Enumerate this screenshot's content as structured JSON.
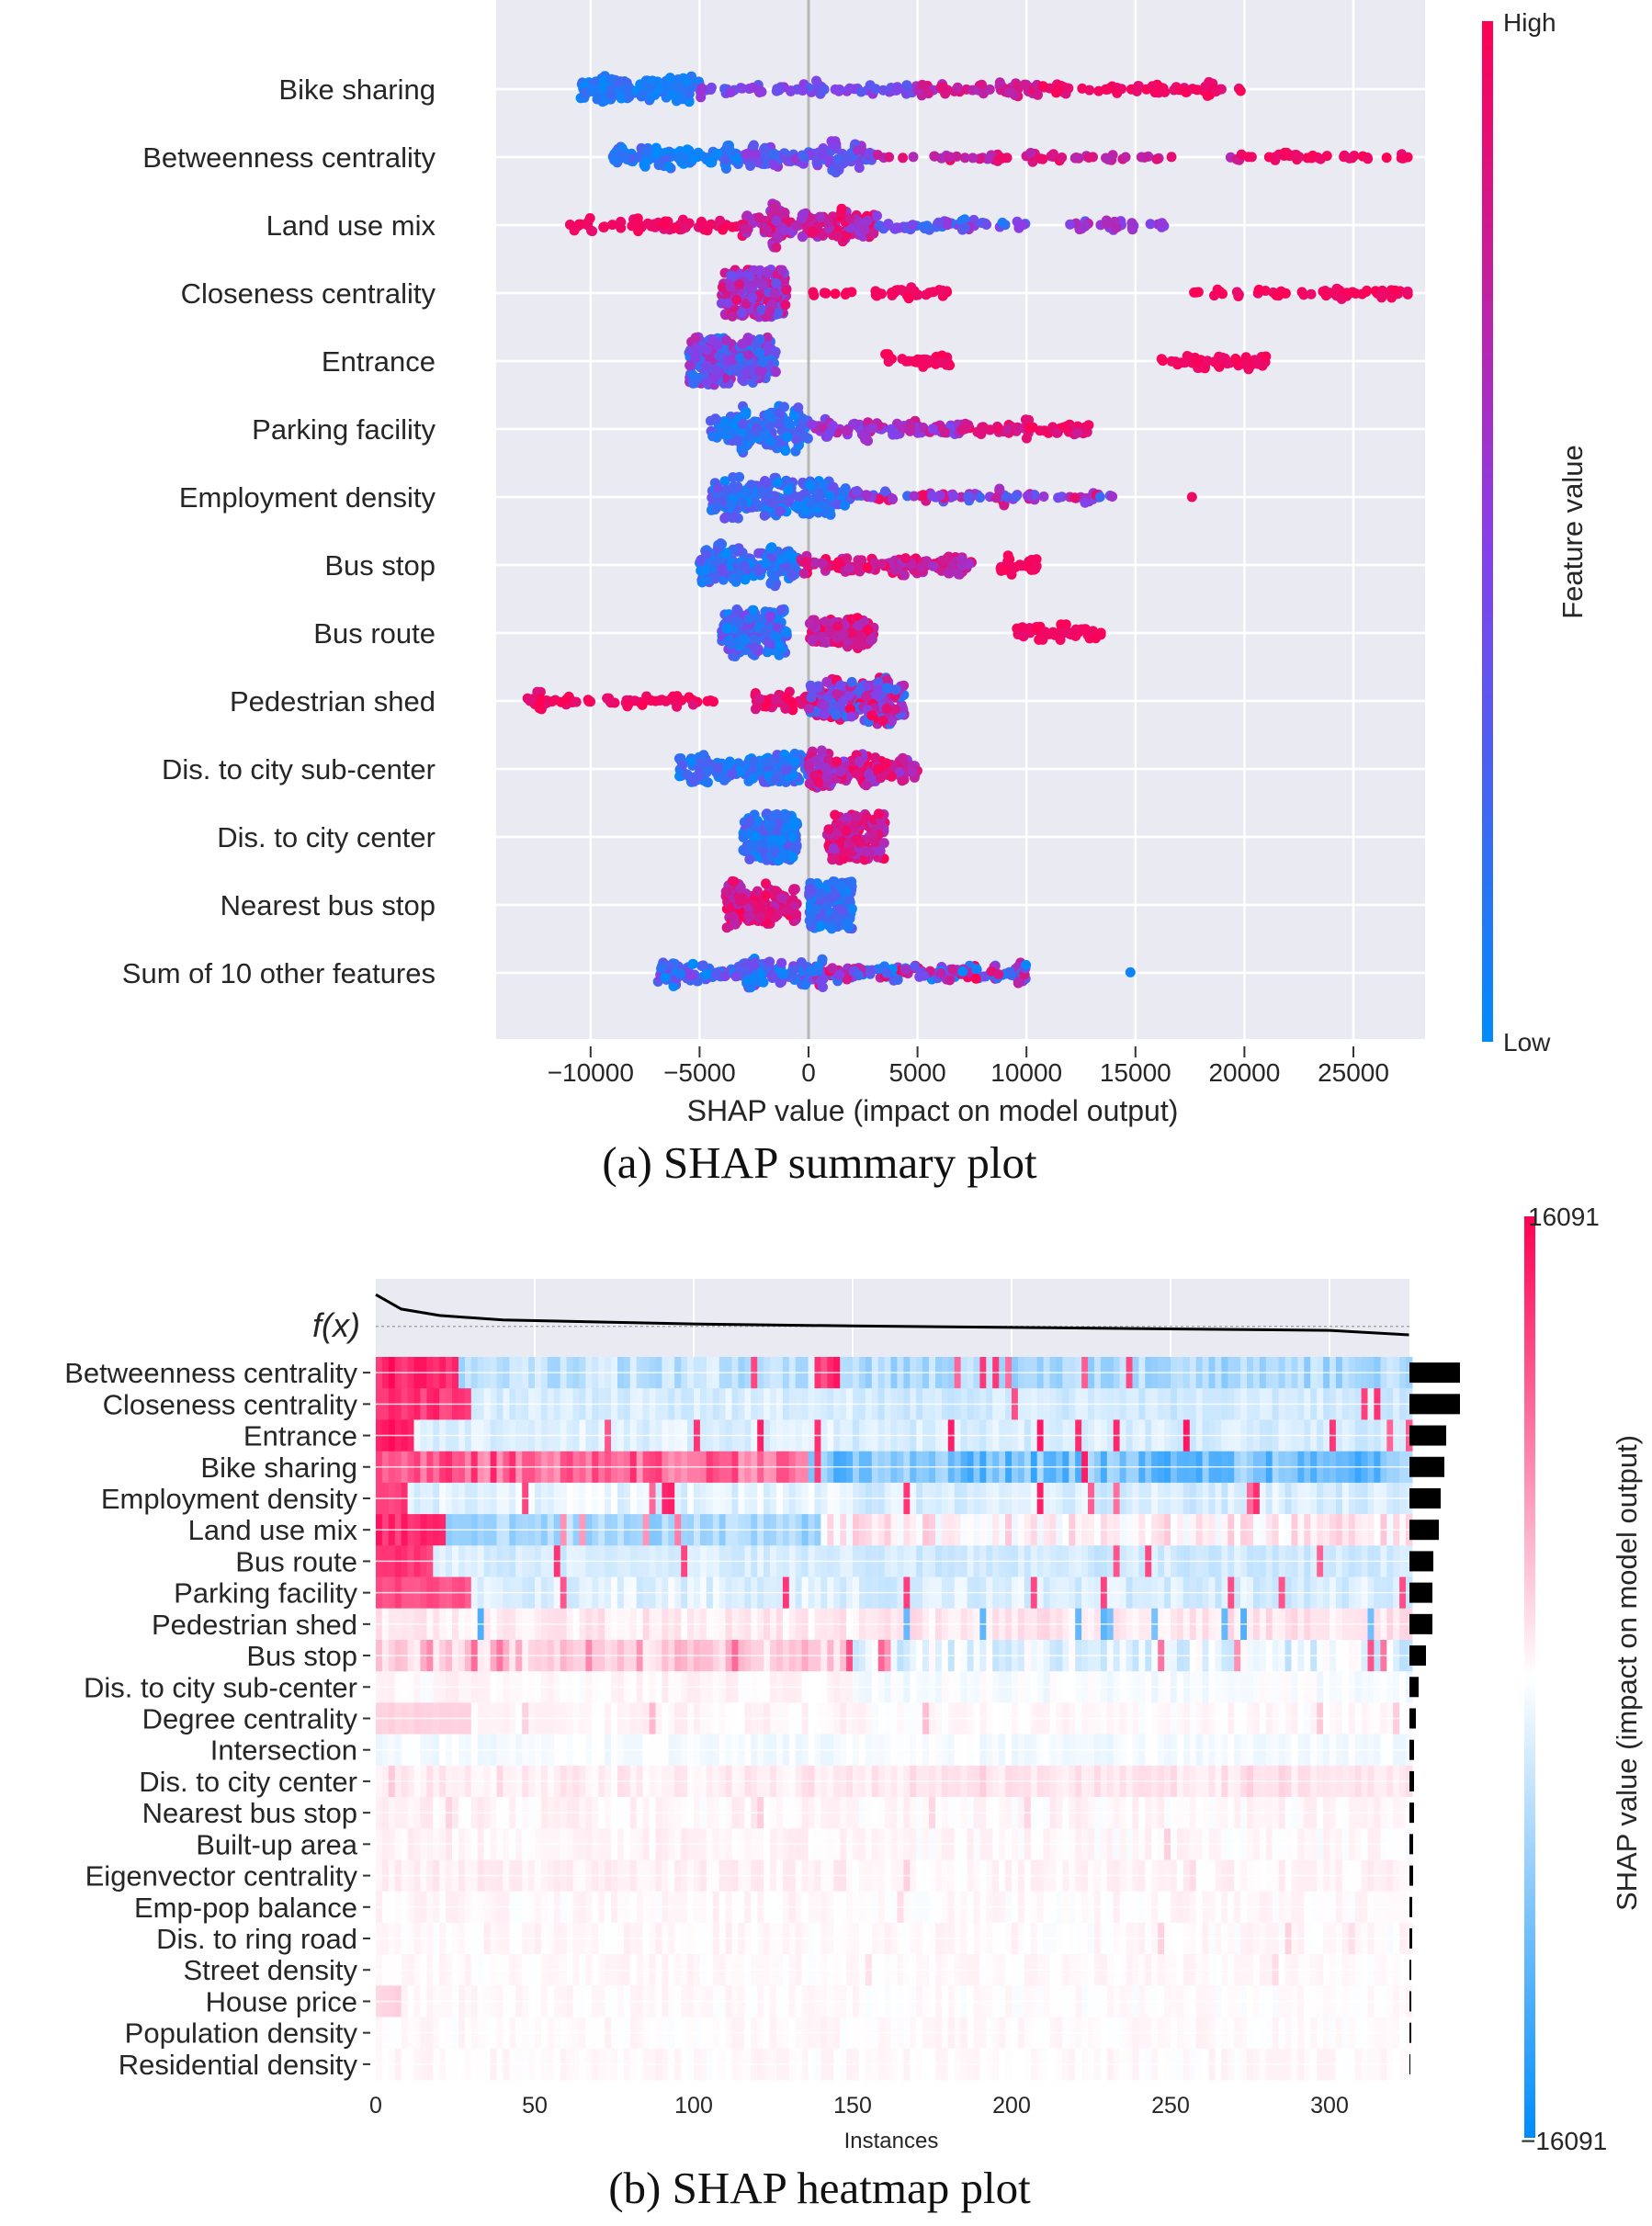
{
  "chart_data": [
    {
      "type": "scatter",
      "subtype": "beeswarm",
      "title": "(a) SHAP summary plot",
      "xlabel": "SHAP value (impact on model output)",
      "xlim": [
        -14000,
        29000
      ],
      "xticks": [
        -10000,
        -5000,
        0,
        5000,
        10000,
        15000,
        20000,
        25000
      ],
      "xtick_labels": [
        "−10000",
        "−5000",
        "0",
        "5000",
        "10000",
        "15000",
        "20000",
        "25000"
      ],
      "colorbar": {
        "label": "Feature value",
        "high": "High",
        "low": "Low"
      },
      "colors": {
        "low": "#008bfb",
        "mid": "#8a3de8",
        "high": "#ff0052",
        "background": "#eaeaf2"
      },
      "segment_format": "[min_shap, max_shap, point_count, feature_value_lo, feature_value_hi]",
      "features": [
        {
          "name": "Bike sharing",
          "segments": [
            [
              -10500,
              -5000,
              140,
              0.0,
              0.25
            ],
            [
              -5000,
              5000,
              70,
              0.3,
              0.6
            ],
            [
              5000,
              12000,
              60,
              0.6,
              0.9
            ],
            [
              10000,
              20000,
              55,
              0.85,
              1.0
            ]
          ]
        },
        {
          "name": "Betweenness centrality",
          "segments": [
            [
              -9000,
              -3000,
              110,
              0.0,
              0.3
            ],
            [
              -3000,
              3000,
              120,
              0.2,
              0.6
            ],
            [
              3000,
              20000,
              60,
              0.6,
              0.95
            ],
            [
              20000,
              27500,
              35,
              0.9,
              1.0
            ]
          ]
        },
        {
          "name": "Land use mix",
          "segments": [
            [
              -11000,
              -3000,
              70,
              0.85,
              1.0
            ],
            [
              -3000,
              3000,
              170,
              0.5,
              1.0
            ],
            [
              3000,
              10000,
              55,
              0.1,
              0.6
            ],
            [
              12000,
              16500,
              30,
              0.4,
              0.7
            ]
          ]
        },
        {
          "name": "Closeness centrality",
          "segments": [
            [
              -4000,
              -1000,
              230,
              0.3,
              0.9
            ],
            [
              0,
              2000,
              8,
              0.9,
              1.0
            ],
            [
              3000,
              6500,
              30,
              0.9,
              1.0
            ],
            [
              17500,
              27500,
              57,
              0.9,
              1.0
            ]
          ]
        },
        {
          "name": "Entrance",
          "segments": [
            [
              -5500,
              -1500,
              240,
              0.1,
              0.7
            ],
            [
              3500,
              6500,
              35,
              0.9,
              1.0
            ],
            [
              16000,
              21000,
              50,
              0.9,
              1.0
            ]
          ]
        },
        {
          "name": "Parking facility",
          "segments": [
            [
              -4500,
              0,
              170,
              0.0,
              0.4
            ],
            [
              0,
              7000,
              90,
              0.4,
              0.8
            ],
            [
              7000,
              13000,
              65,
              0.75,
              1.0
            ]
          ]
        },
        {
          "name": "Employment density",
          "segments": [
            [
              -4500,
              2000,
              240,
              0.0,
              0.4
            ],
            [
              2000,
              14000,
              84,
              0.2,
              1.0
            ],
            [
              17500,
              17600,
              1,
              0.9,
              1.0
            ]
          ]
        },
        {
          "name": "Bus stop",
          "segments": [
            [
              -5000,
              -500,
              170,
              0.0,
              0.4
            ],
            [
              -500,
              7500,
              130,
              0.6,
              1.0
            ],
            [
              8500,
              10500,
              25,
              0.9,
              1.0
            ]
          ]
        },
        {
          "name": "Bus route",
          "segments": [
            [
              -4000,
              -1000,
              170,
              0.0,
              0.5
            ],
            [
              0,
              3000,
              100,
              0.6,
              1.0
            ],
            [
              9500,
              13500,
              55,
              0.9,
              1.0
            ]
          ]
        },
        {
          "name": "Pedestrian shed",
          "segments": [
            [
              -13000,
              -4000,
              65,
              0.85,
              1.0
            ],
            [
              -2500,
              0,
              40,
              0.8,
              1.0
            ],
            [
              0,
              4500,
              220,
              0.1,
              1.0
            ]
          ]
        },
        {
          "name": "Dis. to city sub-center",
          "segments": [
            [
              -6000,
              0,
              170,
              0.0,
              0.35
            ],
            [
              0,
              5000,
              155,
              0.5,
              1.0
            ]
          ]
        },
        {
          "name": "Dis. to city center",
          "segments": [
            [
              -3000,
              -500,
              170,
              0.0,
              0.35
            ],
            [
              800,
              3500,
              155,
              0.6,
              1.0
            ]
          ]
        },
        {
          "name": "Nearest bus stop",
          "segments": [
            [
              -3800,
              -500,
              150,
              0.65,
              1.0
            ],
            [
              0,
              2000,
              175,
              0.0,
              0.35
            ]
          ]
        },
        {
          "name": "Sum of 10 other features",
          "segments": [
            [
              -7000,
              0,
              160,
              0.0,
              0.5
            ],
            [
              0,
              10000,
              164,
              0.0,
              1.0
            ],
            [
              14700,
              14800,
              1,
              0.0,
              0.05
            ]
          ]
        }
      ]
    },
    {
      "type": "heatmap",
      "title": "(b) SHAP heatmap plot",
      "xlabel": "Instances",
      "xlim": [
        0,
        325
      ],
      "xticks": [
        0,
        50,
        100,
        150,
        200,
        250,
        300
      ],
      "fx_label": "f(x)",
      "fx_curve": {
        "instances": [
          0,
          8,
          20,
          40,
          100,
          150,
          200,
          300,
          325
        ],
        "relative_values": [
          0.94,
          0.65,
          0.52,
          0.43,
          0.35,
          0.31,
          0.28,
          0.22,
          0.13
        ],
        "baseline": 0.3
      },
      "colorbar": {
        "label": "SHAP value (impact on model output)",
        "max_label": "16091",
        "min_label": "−16091",
        "vmax": 16091,
        "vmin": -16091
      },
      "colors": {
        "negative": "#008bfb",
        "zero": "#ffffff",
        "positive": "#ff0052",
        "bar": "#000000"
      },
      "row_format": "[early_count, early_value, mean_before_switch, mean_after_switch, switch_instance, noise, spike_prob, spike_value] as fractions of vmax",
      "features": [
        {
          "name": "Betweenness centrality",
          "mean_abs_rel": 55,
          "pattern": [
            25,
            1.0,
            -0.25,
            -0.32,
            150,
            0.15,
            0.07,
            0.95
          ]
        },
        {
          "name": "Closeness centrality",
          "mean_abs_rel": 55,
          "pattern": [
            30,
            0.9,
            -0.15,
            -0.18,
            150,
            0.08,
            0.02,
            0.9
          ]
        },
        {
          "name": "Entrance",
          "mean_abs_rel": 40,
          "pattern": [
            12,
            1.0,
            -0.12,
            -0.15,
            150,
            0.08,
            0.05,
            0.95
          ]
        },
        {
          "name": "Bike sharing",
          "mean_abs_rel": 38,
          "pattern": [
            0,
            0.8,
            0.6,
            -0.55,
            135,
            0.25,
            0.03,
            0.9
          ]
        },
        {
          "name": "Employment density",
          "mean_abs_rel": 34,
          "pattern": [
            10,
            0.85,
            -0.1,
            -0.15,
            150,
            0.1,
            0.06,
            0.9
          ]
        },
        {
          "name": "Land use mix",
          "mean_abs_rel": 32,
          "pattern": [
            22,
            0.95,
            -0.35,
            0.08,
            140,
            0.15,
            0.03,
            0.6
          ]
        },
        {
          "name": "Bus route",
          "mean_abs_rel": 26,
          "pattern": [
            18,
            0.9,
            -0.15,
            -0.18,
            150,
            0.08,
            0.05,
            0.8
          ]
        },
        {
          "name": "Parking facility",
          "mean_abs_rel": 25,
          "pattern": [
            30,
            0.8,
            -0.12,
            -0.15,
            150,
            0.1,
            0.06,
            0.8
          ]
        },
        {
          "name": "Pedestrian shed",
          "mean_abs_rel": 25,
          "pattern": [
            0,
            0.1,
            0.08,
            0.1,
            150,
            0.08,
            0.06,
            -0.7
          ]
        },
        {
          "name": "Bus stop",
          "mean_abs_rel": 18,
          "pattern": [
            0,
            0.3,
            0.2,
            -0.12,
            150,
            0.15,
            0.08,
            0.7
          ]
        },
        {
          "name": "Dis. to city sub-center",
          "mean_abs_rel": 10,
          "pattern": [
            0,
            0.1,
            0.03,
            -0.03,
            150,
            0.06,
            0.0,
            0.3
          ]
        },
        {
          "name": "Degree centrality",
          "mean_abs_rel": 7,
          "pattern": [
            30,
            0.2,
            0.04,
            0.02,
            150,
            0.05,
            0.03,
            0.3
          ]
        },
        {
          "name": "Intersection",
          "mean_abs_rel": 5,
          "pattern": [
            0,
            0.05,
            -0.04,
            -0.04,
            150,
            0.05,
            0.0,
            0.2
          ]
        },
        {
          "name": "Dis. to city center",
          "mean_abs_rel": 5,
          "pattern": [
            0,
            0.1,
            0.07,
            0.1,
            150,
            0.06,
            0.02,
            0.25
          ]
        },
        {
          "name": "Nearest bus stop",
          "mean_abs_rel": 5,
          "pattern": [
            0,
            0.05,
            0.04,
            0.03,
            150,
            0.06,
            0.02,
            0.2
          ]
        },
        {
          "name": "Built-up area",
          "mean_abs_rel": 4,
          "pattern": [
            0,
            0.05,
            0.04,
            0.02,
            150,
            0.06,
            0.01,
            0.2
          ]
        },
        {
          "name": "Eigenvector centrality",
          "mean_abs_rel": 4,
          "pattern": [
            0,
            0.08,
            0.06,
            0.04,
            150,
            0.05,
            0.01,
            0.2
          ]
        },
        {
          "name": "Emp-pop balance",
          "mean_abs_rel": 3,
          "pattern": [
            0,
            0.05,
            0.03,
            0.02,
            150,
            0.05,
            0.01,
            0.2
          ]
        },
        {
          "name": "Dis. to ring road",
          "mean_abs_rel": 3,
          "pattern": [
            0,
            0.05,
            0.03,
            0.02,
            150,
            0.05,
            0.01,
            0.2
          ]
        },
        {
          "name": "Street density",
          "mean_abs_rel": 2,
          "pattern": [
            0,
            0.05,
            0.02,
            0.02,
            150,
            0.04,
            0.01,
            0.15
          ]
        },
        {
          "name": "House price",
          "mean_abs_rel": 2,
          "pattern": [
            8,
            0.2,
            0.02,
            0.01,
            150,
            0.04,
            0.0,
            0.15
          ]
        },
        {
          "name": "Population density",
          "mean_abs_rel": 2,
          "pattern": [
            0,
            0.05,
            0.02,
            0.02,
            150,
            0.04,
            0.0,
            0.15
          ]
        },
        {
          "name": "Residential density",
          "mean_abs_rel": 1,
          "pattern": [
            0,
            0.05,
            0.02,
            0.02,
            150,
            0.04,
            0.0,
            0.15
          ]
        }
      ]
    }
  ]
}
